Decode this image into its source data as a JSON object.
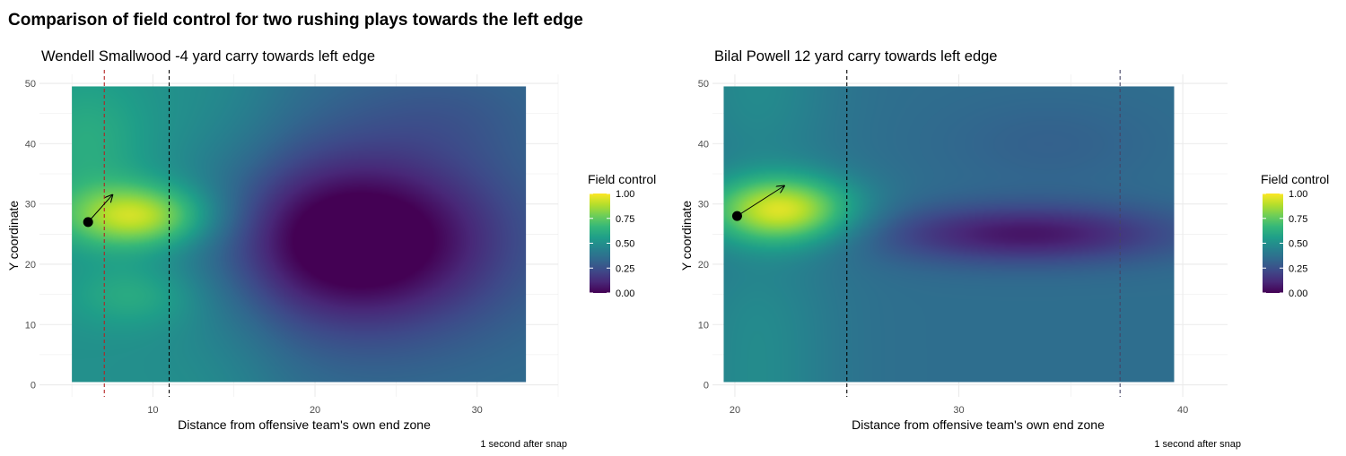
{
  "title": "Comparison of field control for two rushing plays towards the left edge",
  "colors": {
    "viridis": [
      "#440154",
      "#482878",
      "#3e4989",
      "#31688e",
      "#26828e",
      "#1f9e89",
      "#35b779",
      "#6ece58",
      "#b5de2b",
      "#fde725"
    ],
    "line_of_scrimmage": "#000000",
    "first_down": "#b22222",
    "carrier": "#000000",
    "gridline": "#ebebeb",
    "tick_text": "#4d4d4d"
  },
  "chart_data": [
    {
      "type": "heatmap",
      "title": "Wendell Smallwood -4 yard carry towards left edge",
      "xlabel": "Distance from offensive team's own end zone",
      "ylabel": "Y coordinate",
      "caption": "1 second after snap",
      "legend_title": "Field control",
      "legend_ticks": [
        1.0,
        0.75,
        0.5,
        0.25,
        0.0
      ],
      "legend_tick_labels": [
        "1.00",
        "0.75",
        "0.50",
        "0.25",
        "0.00"
      ],
      "legend_position": "right",
      "xlim": [
        3,
        35
      ],
      "ylim": [
        -2,
        51.5
      ],
      "x_ticks": [
        10,
        20,
        30
      ],
      "y_ticks": [
        0,
        10,
        20,
        30,
        40,
        50
      ],
      "field_x_range": [
        5,
        33
      ],
      "field_y_range": [
        0.5,
        49.5
      ],
      "grid": true,
      "line_of_scrimmage_x": 11,
      "first_down_x": 7,
      "ball_carrier": {
        "x": 6,
        "y": 27,
        "arrow_to_x": 7.5,
        "arrow_to_y": 31.5
      },
      "control_features": [
        {
          "kind": "high",
          "x": 9,
          "y": 28,
          "value": 1.0
        },
        {
          "kind": "high",
          "x": 9,
          "y": 15,
          "value": 0.65
        },
        {
          "kind": "low",
          "x": 22.5,
          "y": 24,
          "value": 0.0
        }
      ]
    },
    {
      "type": "heatmap",
      "title": "Bilal Powell 12 yard carry towards left edge",
      "xlabel": "Distance from offensive team's own end zone",
      "ylabel": "Y coordinate",
      "caption": "1 second after snap",
      "legend_title": "Field control",
      "legend_ticks": [
        1.0,
        0.75,
        0.5,
        0.25,
        0.0
      ],
      "legend_tick_labels": [
        "1.00",
        "0.75",
        "0.50",
        "0.25",
        "0.00"
      ],
      "legend_position": "right",
      "xlim": [
        19,
        42
      ],
      "ylim": [
        -2,
        51.5
      ],
      "x_ticks": [
        20,
        30,
        40
      ],
      "y_ticks": [
        0,
        10,
        20,
        30,
        40,
        50
      ],
      "field_x_range": [
        19.5,
        39.6
      ],
      "field_y_range": [
        0.5,
        49.5
      ],
      "grid": true,
      "line_of_scrimmage_x": 25,
      "first_down_x": 37.2,
      "ball_carrier": {
        "x": 20.1,
        "y": 28,
        "arrow_to_x": 22.2,
        "arrow_to_y": 33
      },
      "control_features": [
        {
          "kind": "high",
          "x": 22,
          "y": 29,
          "value": 1.0
        },
        {
          "kind": "low",
          "x": 33,
          "y": 25,
          "value": 0.05
        }
      ]
    }
  ]
}
